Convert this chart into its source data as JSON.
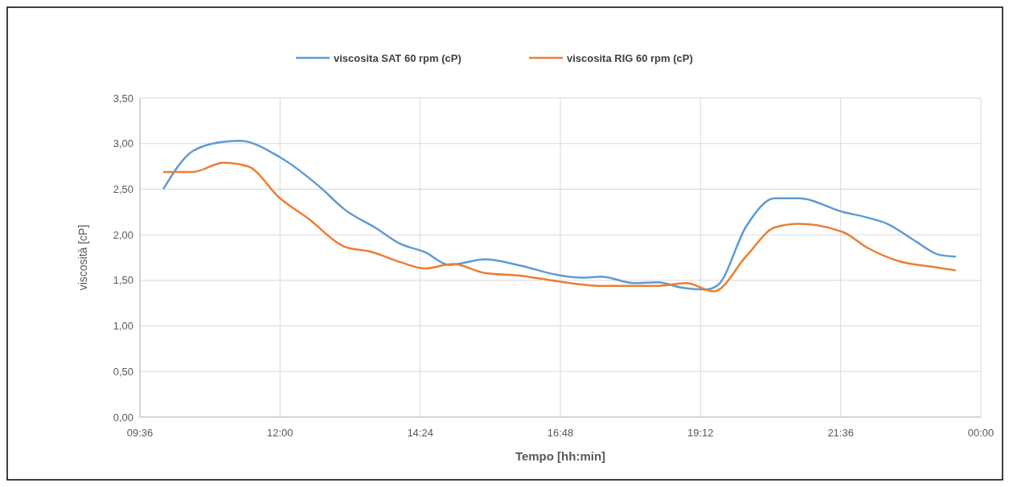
{
  "chart_data": {
    "type": "line",
    "xlabel": "Tempo [hh:min]",
    "ylabel": "viscosità [cP]",
    "xlim": [
      9.6,
      24
    ],
    "xticks": [
      {
        "value": 9.6,
        "label": "09:36"
      },
      {
        "value": 12,
        "label": "12:00"
      },
      {
        "value": 14.4,
        "label": "14:24"
      },
      {
        "value": 16.8,
        "label": "16:48"
      },
      {
        "value": 19.2,
        "label": "19:12"
      },
      {
        "value": 21.6,
        "label": "21:36"
      },
      {
        "value": 24,
        "label": "00:00"
      }
    ],
    "ylim": [
      0,
      3.5
    ],
    "yticks": [
      {
        "value": 0,
        "label": "0,00"
      },
      {
        "value": 0.5,
        "label": "0,50"
      },
      {
        "value": 1,
        "label": "1,00"
      },
      {
        "value": 1.5,
        "label": "1,50"
      },
      {
        "value": 2,
        "label": "2,00"
      },
      {
        "value": 2.5,
        "label": "2,50"
      },
      {
        "value": 3,
        "label": "3,00"
      },
      {
        "value": 3.5,
        "label": "3,50"
      }
    ],
    "grid": true,
    "legend": "top",
    "marker": "none",
    "line_style": "solid",
    "series": [
      {
        "name": "viscosita SAT 60 rpm (cP)",
        "color": "#5b9bd5",
        "x": [
          10.0,
          10.51,
          11.03,
          11.31,
          12.0,
          12.69,
          13.1,
          13.65,
          14.06,
          14.48,
          14.89,
          15.51,
          16.13,
          16.75,
          17.16,
          17.5,
          18.06,
          18.47,
          18.88,
          19.3,
          19.5,
          19.99,
          20.47,
          20.88,
          21.64,
          22.05,
          22.4,
          22.88,
          23.29,
          23.57
        ],
        "values": [
          2.5,
          2.92,
          3.02,
          3.03,
          2.85,
          2.52,
          2.28,
          2.07,
          1.9,
          1.81,
          1.67,
          1.73,
          1.66,
          1.56,
          1.53,
          1.54,
          1.47,
          1.48,
          1.42,
          1.4,
          1.45,
          2.1,
          2.4,
          2.4,
          2.25,
          2.19,
          2.12,
          1.93,
          1.78,
          1.76
        ]
      },
      {
        "name": "viscosita RIG 60 rpm (cP)",
        "color": "#ed7d31",
        "x": [
          10.0,
          10.51,
          11.03,
          11.45,
          12.0,
          12.48,
          13.1,
          13.58,
          14.06,
          14.48,
          14.96,
          15.51,
          16.13,
          16.75,
          17.5,
          18.47,
          18.95,
          19.43,
          19.99,
          20.47,
          20.88,
          21.64,
          22.05,
          22.6,
          23.15,
          23.57
        ],
        "values": [
          2.69,
          2.69,
          2.79,
          2.75,
          2.4,
          2.18,
          1.87,
          1.81,
          1.7,
          1.63,
          1.68,
          1.58,
          1.55,
          1.49,
          1.44,
          1.44,
          1.47,
          1.38,
          1.77,
          2.08,
          2.12,
          2.03,
          1.86,
          1.71,
          1.65,
          1.61
        ]
      }
    ]
  }
}
